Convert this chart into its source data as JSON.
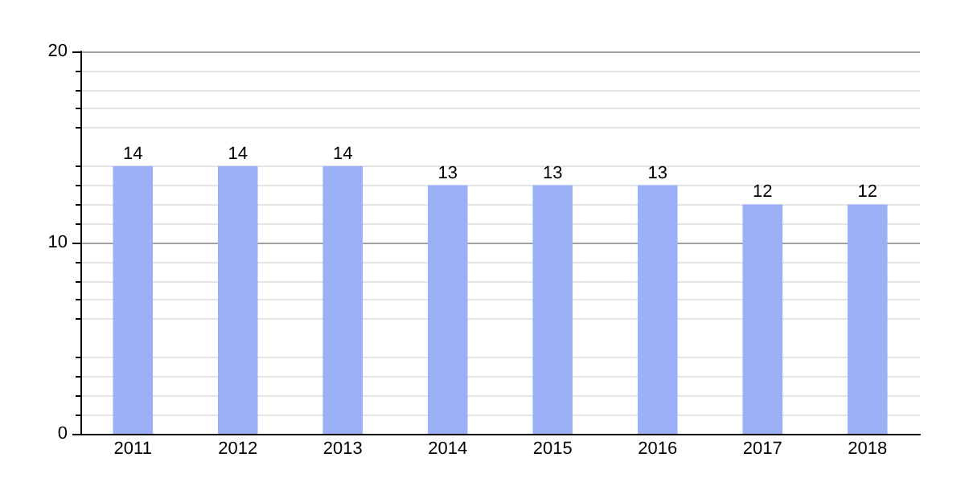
{
  "chart_data": {
    "type": "bar",
    "categories": [
      "2011",
      "2012",
      "2013",
      "2014",
      "2015",
      "2016",
      "2017",
      "2018"
    ],
    "values": [
      14,
      14,
      14,
      13,
      13,
      13,
      12,
      12
    ],
    "color": "#9cb0f8",
    "ylim": [
      0,
      20
    ],
    "yticks": [
      0,
      10,
      20
    ],
    "grid": "y",
    "data_labels": true
  }
}
